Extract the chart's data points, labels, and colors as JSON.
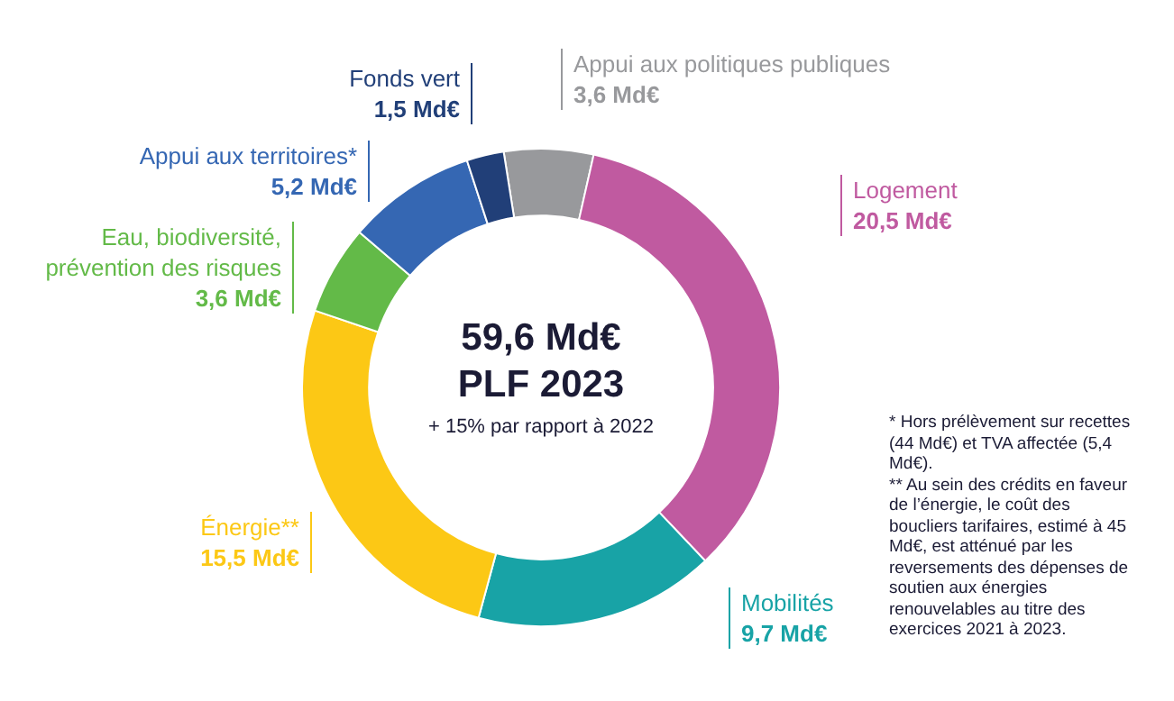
{
  "chart_data": {
    "type": "donut",
    "title": "59,6 Md€",
    "subtitle": "PLF 2023",
    "categories": [
      "Appui aux politiques publiques",
      "Logement",
      "Mobilités",
      "Énergie**",
      "Eau, biodiversité, prévention des risques",
      "Appui aux territoires*",
      "Fonds vert"
    ],
    "values": [
      3.6,
      20.5,
      9.7,
      15.5,
      3.6,
      5.2,
      1.5
    ],
    "colors": [
      "#98999c",
      "#c05aa0",
      "#18a3a6",
      "#fcc815",
      "#63ba48",
      "#3567b3",
      "#213f78"
    ],
    "value_labels": [
      "3,6 Md€",
      "20,5 Md€",
      "9,7 Md€",
      "15,5 Md€",
      "3,6 Md€",
      "5,2 Md€",
      "1,5 Md€"
    ],
    "annotations": [
      "+ 15% par rapport à 2022",
      "* Hors prélèvement sur recettes (44 Md€) et TVA affectée (5,4 Md€).",
      "** Au sein des crédits en faveur de l’énergie, le coût des boucliers tarifaires, estimé à 45 Md€, est atténué par les reversements des dépenses de soutien aux énergies renouvelables au titre des exercices 2021 à 2023."
    ]
  }
}
